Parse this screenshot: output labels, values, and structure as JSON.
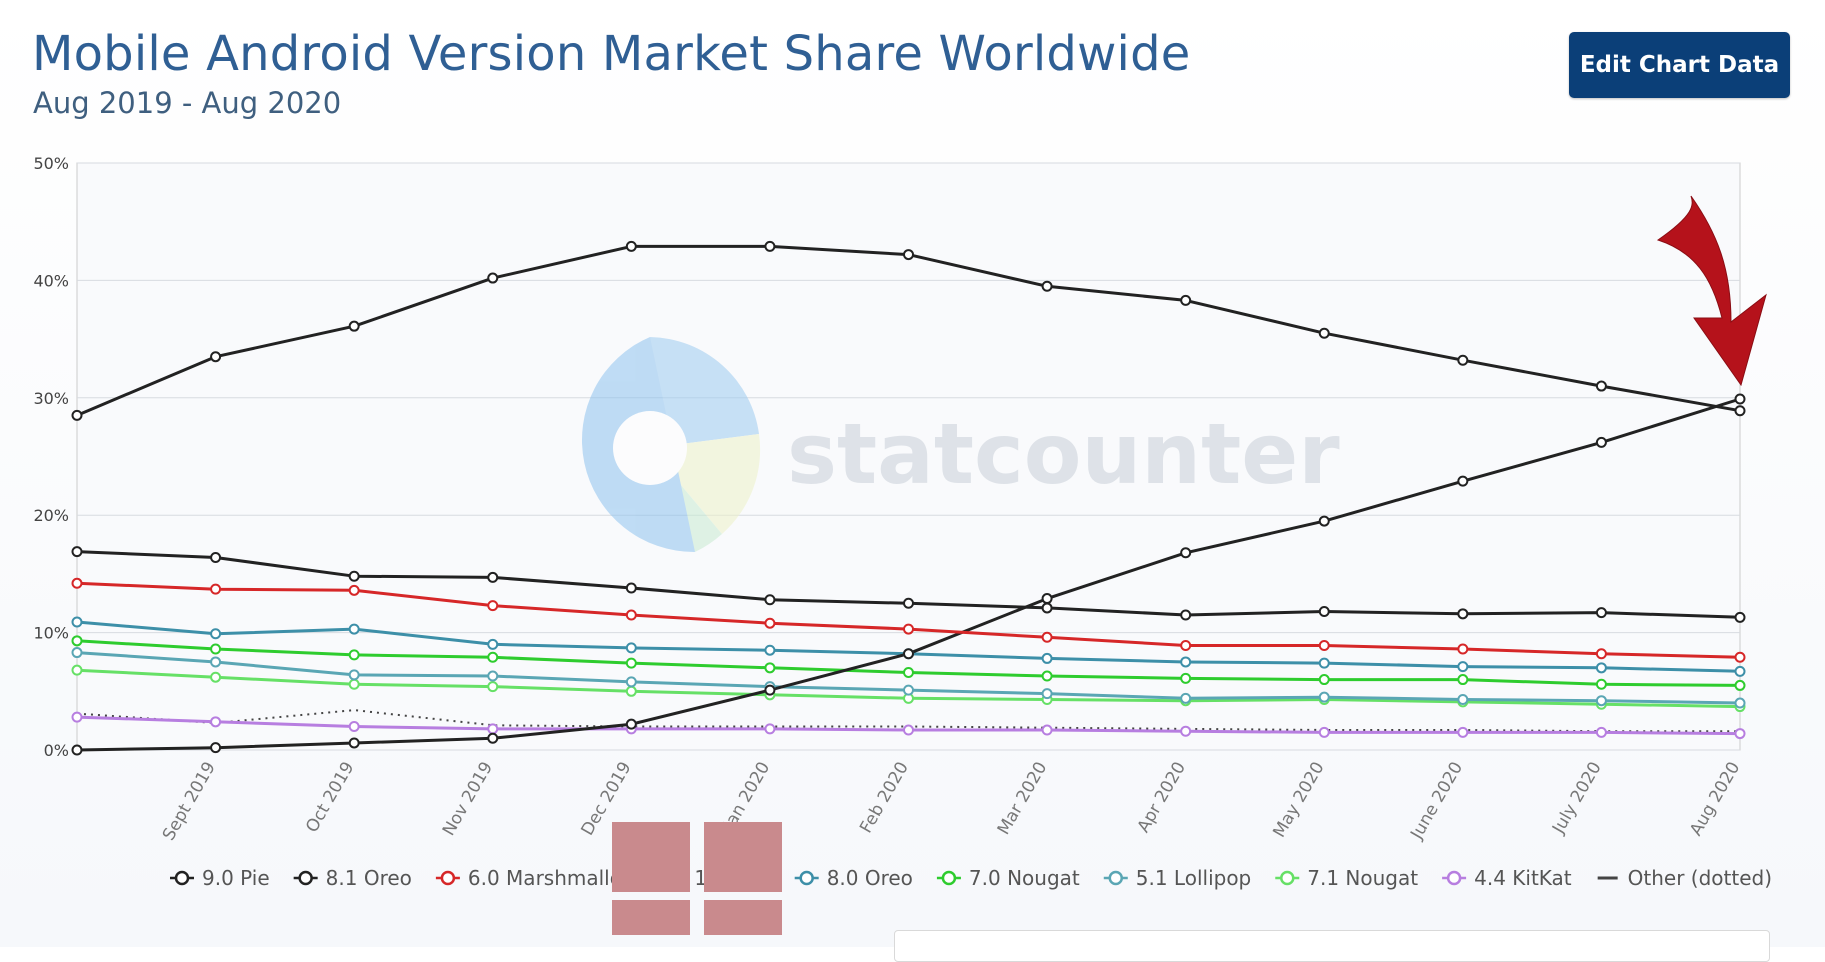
{
  "header": {
    "title": "Mobile Android Version Market Share Worldwide",
    "subtitle": "Aug 2019 - Aug 2020",
    "edit_button_label": "Edit Chart Data"
  },
  "watermark": {
    "text": "statcounter"
  },
  "chart_data": {
    "type": "line",
    "title": "Mobile Android Version Market Share Worldwide",
    "subtitle": "Aug 2019 - Aug 2020",
    "xlabel": "",
    "ylabel": "",
    "ylim": [
      0,
      50
    ],
    "y_ticks": [
      "0%",
      "10%",
      "20%",
      "30%",
      "40%",
      "50%"
    ],
    "categories": [
      "",
      "Sept 2019",
      "Oct 2019",
      "Nov 2019",
      "Dec 2019",
      "Jan 2020",
      "Feb 2020",
      "Mar 2020",
      "Apr 2020",
      "May 2020",
      "June 2020",
      "July 2020",
      "Aug 2020"
    ],
    "grid": true,
    "legend_position": "bottom",
    "series": [
      {
        "name": "9.0 Pie",
        "color": "#222222",
        "dotted": false,
        "values": [
          28.5,
          33.5,
          36.1,
          40.2,
          42.9,
          42.9,
          42.2,
          39.5,
          38.3,
          35.5,
          33.2,
          31.0,
          28.9
        ]
      },
      {
        "name": "8.1 Oreo",
        "color": "#222222",
        "dotted": false,
        "values": [
          16.9,
          16.4,
          14.8,
          14.7,
          13.8,
          12.8,
          12.5,
          12.1,
          11.5,
          11.8,
          11.6,
          11.7,
          11.3
        ]
      },
      {
        "name": "6.0 Marshmallow",
        "color": "#d62728",
        "dotted": false,
        "values": [
          14.2,
          13.7,
          13.6,
          12.3,
          11.5,
          10.8,
          10.3,
          9.6,
          8.9,
          8.9,
          8.6,
          8.2,
          7.9
        ]
      },
      {
        "name": "10.0 10",
        "color": "#222222",
        "dotted": false,
        "values": [
          0.0,
          0.2,
          0.6,
          1.0,
          2.2,
          5.1,
          8.2,
          12.9,
          16.8,
          19.5,
          22.9,
          26.2,
          29.9
        ]
      },
      {
        "name": "8.0 Oreo",
        "color": "#3d8fa8",
        "dotted": false,
        "values": [
          10.9,
          9.9,
          10.3,
          9.0,
          8.7,
          8.5,
          8.2,
          7.8,
          7.5,
          7.4,
          7.1,
          7.0,
          6.7
        ]
      },
      {
        "name": "7.0 Nougat",
        "color": "#2ecc2e",
        "dotted": false,
        "values": [
          9.3,
          8.6,
          8.1,
          7.9,
          7.4,
          7.0,
          6.6,
          6.3,
          6.1,
          6.0,
          6.0,
          5.6,
          5.5
        ]
      },
      {
        "name": "5.1 Lollipop",
        "color": "#5aa6b4",
        "dotted": false,
        "values": [
          8.3,
          7.5,
          6.4,
          6.3,
          5.8,
          5.4,
          5.1,
          4.8,
          4.4,
          4.5,
          4.3,
          4.2,
          4.0
        ]
      },
      {
        "name": "7.1 Nougat",
        "color": "#66e066",
        "dotted": false,
        "values": [
          6.8,
          6.2,
          5.6,
          5.4,
          5.0,
          4.7,
          4.4,
          4.3,
          4.2,
          4.3,
          4.1,
          3.9,
          3.7
        ]
      },
      {
        "name": "4.4 KitKat",
        "color": "#b77ee0",
        "dotted": false,
        "values": [
          2.8,
          2.4,
          2.0,
          1.8,
          1.8,
          1.8,
          1.7,
          1.7,
          1.6,
          1.5,
          1.5,
          1.5,
          1.4
        ]
      },
      {
        "name": "Other (dotted)",
        "color": "#444444",
        "dotted": true,
        "values": [
          3.1,
          2.3,
          3.4,
          2.1,
          2.0,
          2.0,
          2.0,
          1.9,
          1.8,
          1.7,
          1.7,
          1.6,
          1.6
        ]
      }
    ]
  }
}
